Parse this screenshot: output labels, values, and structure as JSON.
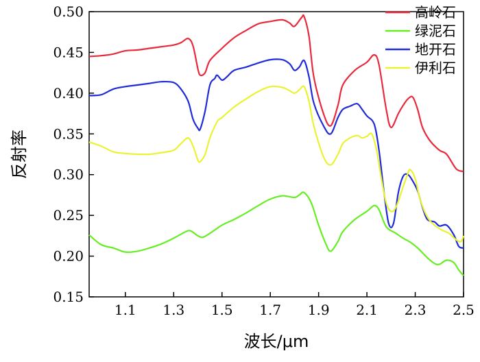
{
  "chart_data": {
    "type": "line",
    "xlabel": "波长/μm",
    "ylabel": "反射率",
    "xlim": [
      0.95,
      2.5
    ],
    "ylim": [
      0.15,
      0.5
    ],
    "xticks": [
      1.1,
      1.3,
      1.5,
      1.7,
      1.9,
      2.1,
      2.3,
      2.5
    ],
    "xtick_labels": [
      "1.1",
      "1.3",
      "1.5",
      "1.7",
      "1.9",
      "2.1",
      "2.3",
      "2.5"
    ],
    "yticks": [
      0.15,
      0.2,
      0.25,
      0.3,
      0.35,
      0.4,
      0.45,
      0.5
    ],
    "ytick_labels": [
      "0.15",
      "0.20",
      "0.25",
      "0.30",
      "0.35",
      "0.40",
      "0.45",
      "0.50"
    ],
    "grid": false,
    "legend_position": "top-right",
    "series": [
      {
        "name": "高岭石",
        "color": "#e8293b",
        "points": [
          [
            0.95,
            0.445
          ],
          [
            1.0,
            0.446
          ],
          [
            1.05,
            0.448
          ],
          [
            1.1,
            0.452
          ],
          [
            1.15,
            0.453
          ],
          [
            1.2,
            0.455
          ],
          [
            1.25,
            0.457
          ],
          [
            1.3,
            0.459
          ],
          [
            1.33,
            0.462
          ],
          [
            1.36,
            0.467
          ],
          [
            1.38,
            0.458
          ],
          [
            1.4,
            0.43
          ],
          [
            1.41,
            0.422
          ],
          [
            1.43,
            0.425
          ],
          [
            1.45,
            0.44
          ],
          [
            1.5,
            0.455
          ],
          [
            1.55,
            0.468
          ],
          [
            1.6,
            0.477
          ],
          [
            1.65,
            0.485
          ],
          [
            1.7,
            0.488
          ],
          [
            1.75,
            0.49
          ],
          [
            1.78,
            0.486
          ],
          [
            1.8,
            0.482
          ],
          [
            1.83,
            0.493
          ],
          [
            1.84,
            0.494
          ],
          [
            1.86,
            0.47
          ],
          [
            1.88,
            0.42
          ],
          [
            1.92,
            0.375
          ],
          [
            1.95,
            0.36
          ],
          [
            1.98,
            0.385
          ],
          [
            2.0,
            0.41
          ],
          [
            2.05,
            0.428
          ],
          [
            2.1,
            0.438
          ],
          [
            2.13,
            0.447
          ],
          [
            2.15,
            0.435
          ],
          [
            2.18,
            0.38
          ],
          [
            2.2,
            0.358
          ],
          [
            2.23,
            0.375
          ],
          [
            2.25,
            0.385
          ],
          [
            2.27,
            0.393
          ],
          [
            2.29,
            0.395
          ],
          [
            2.31,
            0.38
          ],
          [
            2.33,
            0.358
          ],
          [
            2.36,
            0.342
          ],
          [
            2.4,
            0.33
          ],
          [
            2.43,
            0.325
          ],
          [
            2.47,
            0.307
          ],
          [
            2.5,
            0.304
          ]
        ]
      },
      {
        "name": "绿泥石",
        "color": "#66ee22",
        "points": [
          [
            0.95,
            0.226
          ],
          [
            1.0,
            0.214
          ],
          [
            1.05,
            0.21
          ],
          [
            1.1,
            0.205
          ],
          [
            1.15,
            0.206
          ],
          [
            1.2,
            0.21
          ],
          [
            1.25,
            0.215
          ],
          [
            1.3,
            0.222
          ],
          [
            1.35,
            0.23
          ],
          [
            1.37,
            0.231
          ],
          [
            1.4,
            0.225
          ],
          [
            1.42,
            0.223
          ],
          [
            1.45,
            0.228
          ],
          [
            1.5,
            0.238
          ],
          [
            1.55,
            0.245
          ],
          [
            1.6,
            0.253
          ],
          [
            1.65,
            0.262
          ],
          [
            1.7,
            0.27
          ],
          [
            1.75,
            0.274
          ],
          [
            1.8,
            0.272
          ],
          [
            1.82,
            0.275
          ],
          [
            1.84,
            0.278
          ],
          [
            1.87,
            0.265
          ],
          [
            1.9,
            0.238
          ],
          [
            1.93,
            0.215
          ],
          [
            1.95,
            0.206
          ],
          [
            1.98,
            0.218
          ],
          [
            2.0,
            0.23
          ],
          [
            2.05,
            0.245
          ],
          [
            2.1,
            0.255
          ],
          [
            2.13,
            0.262
          ],
          [
            2.15,
            0.257
          ],
          [
            2.18,
            0.236
          ],
          [
            2.22,
            0.228
          ],
          [
            2.25,
            0.222
          ],
          [
            2.28,
            0.217
          ],
          [
            2.31,
            0.21
          ],
          [
            2.35,
            0.198
          ],
          [
            2.38,
            0.191
          ],
          [
            2.4,
            0.19
          ],
          [
            2.43,
            0.195
          ],
          [
            2.46,
            0.192
          ],
          [
            2.48,
            0.183
          ],
          [
            2.5,
            0.176
          ]
        ]
      },
      {
        "name": "地开石",
        "color": "#1f2ad8",
        "points": [
          [
            0.95,
            0.397
          ],
          [
            1.0,
            0.398
          ],
          [
            1.05,
            0.405
          ],
          [
            1.1,
            0.408
          ],
          [
            1.15,
            0.41
          ],
          [
            1.2,
            0.412
          ],
          [
            1.25,
            0.414
          ],
          [
            1.3,
            0.413
          ],
          [
            1.33,
            0.405
          ],
          [
            1.36,
            0.39
          ],
          [
            1.38,
            0.368
          ],
          [
            1.4,
            0.357
          ],
          [
            1.41,
            0.356
          ],
          [
            1.43,
            0.378
          ],
          [
            1.45,
            0.41
          ],
          [
            1.47,
            0.418
          ],
          [
            1.48,
            0.422
          ],
          [
            1.5,
            0.416
          ],
          [
            1.52,
            0.42
          ],
          [
            1.55,
            0.428
          ],
          [
            1.6,
            0.432
          ],
          [
            1.65,
            0.437
          ],
          [
            1.7,
            0.441
          ],
          [
            1.75,
            0.441
          ],
          [
            1.78,
            0.436
          ],
          [
            1.8,
            0.428
          ],
          [
            1.82,
            0.432
          ],
          [
            1.84,
            0.44
          ],
          [
            1.86,
            0.42
          ],
          [
            1.88,
            0.388
          ],
          [
            1.92,
            0.36
          ],
          [
            1.95,
            0.35
          ],
          [
            1.98,
            0.37
          ],
          [
            2.0,
            0.38
          ],
          [
            2.03,
            0.384
          ],
          [
            2.06,
            0.387
          ],
          [
            2.08,
            0.38
          ],
          [
            2.1,
            0.372
          ],
          [
            2.13,
            0.362
          ],
          [
            2.15,
            0.33
          ],
          [
            2.17,
            0.28
          ],
          [
            2.19,
            0.24
          ],
          [
            2.21,
            0.24
          ],
          [
            2.23,
            0.278
          ],
          [
            2.25,
            0.298
          ],
          [
            2.27,
            0.3
          ],
          [
            2.29,
            0.292
          ],
          [
            2.31,
            0.28
          ],
          [
            2.33,
            0.26
          ],
          [
            2.35,
            0.245
          ],
          [
            2.38,
            0.242
          ],
          [
            2.4,
            0.237
          ],
          [
            2.43,
            0.238
          ],
          [
            2.46,
            0.226
          ],
          [
            2.48,
            0.212
          ],
          [
            2.5,
            0.21
          ]
        ]
      },
      {
        "name": "伊利石",
        "color": "#e9f330",
        "points": [
          [
            0.95,
            0.34
          ],
          [
            1.0,
            0.335
          ],
          [
            1.05,
            0.328
          ],
          [
            1.1,
            0.326
          ],
          [
            1.15,
            0.325
          ],
          [
            1.2,
            0.325
          ],
          [
            1.25,
            0.327
          ],
          [
            1.3,
            0.33
          ],
          [
            1.33,
            0.338
          ],
          [
            1.36,
            0.345
          ],
          [
            1.38,
            0.335
          ],
          [
            1.4,
            0.318
          ],
          [
            1.41,
            0.316
          ],
          [
            1.43,
            0.325
          ],
          [
            1.45,
            0.345
          ],
          [
            1.48,
            0.365
          ],
          [
            1.5,
            0.37
          ],
          [
            1.55,
            0.383
          ],
          [
            1.6,
            0.393
          ],
          [
            1.65,
            0.402
          ],
          [
            1.7,
            0.408
          ],
          [
            1.75,
            0.407
          ],
          [
            1.78,
            0.403
          ],
          [
            1.8,
            0.4
          ],
          [
            1.82,
            0.404
          ],
          [
            1.84,
            0.408
          ],
          [
            1.86,
            0.39
          ],
          [
            1.88,
            0.36
          ],
          [
            1.92,
            0.322
          ],
          [
            1.95,
            0.312
          ],
          [
            1.98,
            0.325
          ],
          [
            2.0,
            0.338
          ],
          [
            2.03,
            0.345
          ],
          [
            2.06,
            0.348
          ],
          [
            2.08,
            0.345
          ],
          [
            2.1,
            0.347
          ],
          [
            2.12,
            0.35
          ],
          [
            2.14,
            0.33
          ],
          [
            2.16,
            0.295
          ],
          [
            2.18,
            0.265
          ],
          [
            2.2,
            0.255
          ],
          [
            2.22,
            0.26
          ],
          [
            2.25,
            0.285
          ],
          [
            2.27,
            0.302
          ],
          [
            2.28,
            0.306
          ],
          [
            2.3,
            0.295
          ],
          [
            2.32,
            0.27
          ],
          [
            2.35,
            0.248
          ],
          [
            2.38,
            0.238
          ],
          [
            2.41,
            0.232
          ],
          [
            2.44,
            0.228
          ],
          [
            2.47,
            0.22
          ],
          [
            2.49,
            0.218
          ],
          [
            2.5,
            0.225
          ]
        ]
      }
    ]
  }
}
